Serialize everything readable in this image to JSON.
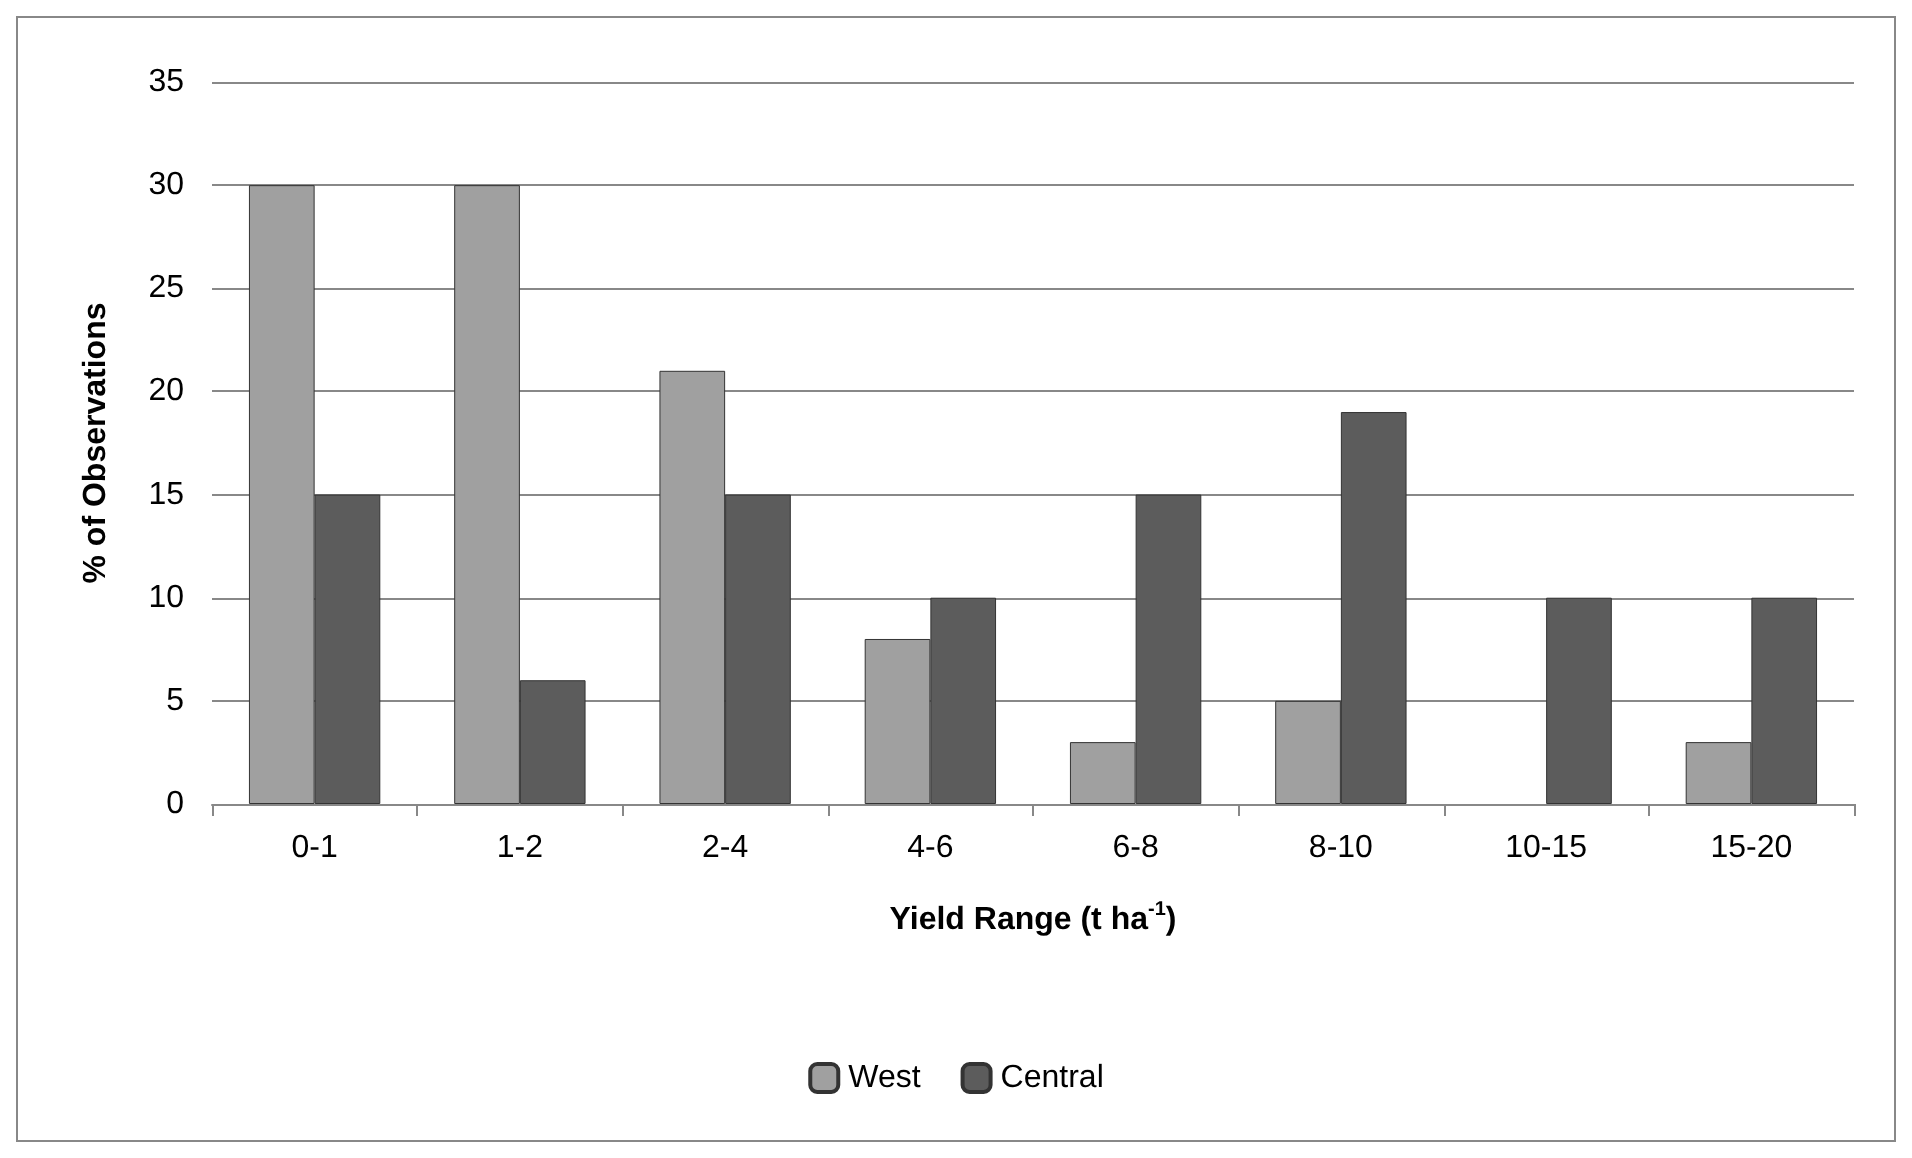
{
  "chart_data": {
    "type": "bar",
    "xlabel": "Yield Range (t ha$^{-1}$)",
    "ylabel": "% of Observations",
    "categories": [
      "0-1",
      "1-2",
      "2-4",
      "4-6",
      "6-8",
      "8-10",
      "10-15",
      "15-20"
    ],
    "series": [
      {
        "name": "West",
        "color": "#a0a0a0",
        "values": [
          30,
          30,
          21,
          8,
          3,
          5,
          null,
          3
        ]
      },
      {
        "name": "Central",
        "color": "#5c5c5c",
        "values": [
          15,
          6,
          15,
          10,
          15,
          19,
          10,
          10
        ]
      }
    ],
    "ylim": [
      0,
      35
    ],
    "yticks": [
      0,
      5,
      10,
      15,
      20,
      25,
      30,
      35
    ],
    "grid": "y",
    "legend": "bottom"
  }
}
